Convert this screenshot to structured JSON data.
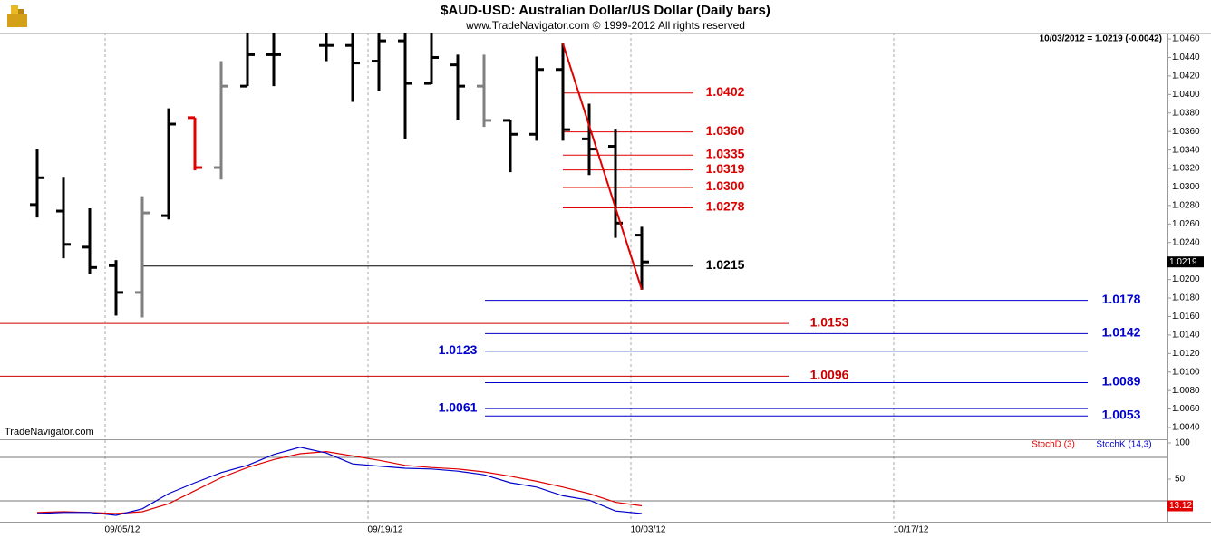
{
  "chart_data": {
    "type": "ohlc",
    "title": "$AUD-USD:  Australian Dollar/US Dollar  (Daily bars)",
    "subtitle": "www.TradeNavigator.com © 1999-2012 All rights reserved",
    "info": "10/03/2012 = 1.0219 (-0.0042)",
    "watermark": "TradeNavigator.com",
    "x": [
      "08/31/12",
      "09/03/12",
      "09/04/12",
      "09/05/12",
      "09/06/12",
      "09/07/12",
      "09/10/12",
      "09/11/12",
      "09/12/12",
      "09/13/12",
      "09/14/12",
      "09/17/12",
      "09/18/12",
      "09/19/12",
      "09/20/12",
      "09/21/12",
      "09/24/12",
      "09/25/12",
      "09/26/12",
      "09/27/12",
      "09/28/12",
      "10/01/12",
      "10/02/12",
      "10/03/12"
    ],
    "open": [
      1.0281,
      1.0274,
      1.0235,
      1.0215,
      1.0186,
      1.0269,
      1.0375,
      1.0321,
      1.0409,
      1.0443,
      null,
      1.0453,
      1.0453,
      1.0436,
      1.0458,
      1.0412,
      1.0432,
      1.0409,
      1.0372,
      1.0357,
      1.0427,
      1.0352,
      1.0344,
      1.0248
    ],
    "high": [
      1.0341,
      1.0311,
      1.0277,
      1.0221,
      1.029,
      1.0385,
      1.0375,
      1.0436,
      1.047,
      1.047,
      null,
      1.047,
      1.047,
      1.047,
      1.047,
      1.047,
      1.0443,
      1.0443,
      1.0372,
      1.0441,
      1.0455,
      1.039,
      1.0363,
      1.0257
    ],
    "low": [
      1.0267,
      1.0223,
      1.0206,
      1.0161,
      1.0159,
      1.0265,
      1.0318,
      1.0308,
      1.0409,
      1.0409,
      null,
      1.0436,
      1.0392,
      1.0404,
      1.0352,
      1.0411,
      1.0372,
      1.0365,
      1.0316,
      1.035,
      1.035,
      1.0313,
      1.0245,
      1.0189
    ],
    "close": [
      1.031,
      1.0238,
      1.0213,
      1.0186,
      1.0272,
      1.0368,
      1.0321,
      1.0409,
      1.0443,
      1.0443,
      null,
      1.0453,
      1.0434,
      1.0458,
      1.0412,
      1.044,
      1.0409,
      1.0372,
      1.0357,
      1.0427,
      1.0362,
      1.0341,
      1.0261,
      1.0219
    ],
    "bar_colors": [
      "#000000",
      "#000000",
      "#000000",
      "#000000",
      "#808080",
      "#000000",
      "#e00000",
      "#808080",
      "#000000",
      "#000000",
      "#000000",
      "#000000",
      "#000000",
      "#000000",
      "#000000",
      "#000000",
      "#000000",
      "#808080",
      "#000000",
      "#000000",
      "#000000",
      "#000000",
      "#000000",
      "#000000"
    ],
    "ylim": [
      1.00273,
      1.04669
    ],
    "yticks": [
      {
        "value": 1.046,
        "label": "1.0460"
      },
      {
        "value": 1.044,
        "label": "1.0440"
      },
      {
        "value": 1.042,
        "label": "1.0420"
      },
      {
        "value": 1.04,
        "label": "1.0400"
      },
      {
        "value": 1.038,
        "label": "1.0380"
      },
      {
        "value": 1.036,
        "label": "1.0360"
      },
      {
        "value": 1.034,
        "label": "1.0340"
      },
      {
        "value": 1.032,
        "label": "1.0320"
      },
      {
        "value": 1.03,
        "label": "1.0300"
      },
      {
        "value": 1.028,
        "label": "1.0280"
      },
      {
        "value": 1.026,
        "label": "1.0260"
      },
      {
        "value": 1.024,
        "label": "1.0240"
      },
      {
        "value": 1.022,
        "label": "1.0220"
      },
      {
        "value": 1.02,
        "label": "1.0200"
      },
      {
        "value": 1.018,
        "label": "1.0180"
      },
      {
        "value": 1.016,
        "label": "1.0160"
      },
      {
        "value": 1.014,
        "label": "1.0140"
      },
      {
        "value": 1.012,
        "label": "1.0120"
      },
      {
        "value": 1.01,
        "label": "1.0100"
      },
      {
        "value": 1.008,
        "label": "1.0080"
      },
      {
        "value": 1.006,
        "label": "1.0060"
      },
      {
        "value": 1.004,
        "label": "1.0040"
      }
    ],
    "xticks": [
      "09/05/12",
      "09/19/12",
      "10/03/12",
      "10/17/12"
    ],
    "last_price": 1.0219,
    "trend_line": {
      "color": "#e00000",
      "x": [
        "09/28/12",
        "10/03/12"
      ],
      "values": [
        1.0455,
        1.0189
      ]
    },
    "retracement_levels": {
      "color": "#e00000",
      "items": [
        {
          "value": 1.0402,
          "label": "1.0402"
        },
        {
          "value": 1.036,
          "label": "1.0360"
        },
        {
          "value": 1.0335,
          "label": "1.0335"
        },
        {
          "value": 1.0319,
          "label": "1.0319"
        },
        {
          "value": 1.03,
          "label": "1.0300"
        },
        {
          "value": 1.0278,
          "label": "1.0278"
        }
      ]
    },
    "reference_level": {
      "color": "#000000",
      "items": [
        {
          "value": 1.0215,
          "label": "1.0215"
        }
      ]
    },
    "projection_levels": {
      "color": "#0000cc",
      "items": [
        {
          "value": 1.0178,
          "label": "1.0178",
          "label_side": "right"
        },
        {
          "value": 1.0142,
          "label": "1.0142",
          "label_side": "right"
        },
        {
          "value": 1.0123,
          "label": "1.0123",
          "label_side": "left"
        },
        {
          "value": 1.0089,
          "label": "1.0089",
          "label_side": "right"
        },
        {
          "value": 1.0061,
          "label": "1.0061",
          "label_side": "left"
        },
        {
          "value": 1.0053,
          "label": "1.0053",
          "label_side": "right"
        }
      ]
    },
    "support_levels": {
      "color": "#cc0000",
      "items": [
        {
          "value": 1.0153,
          "label": "1.0153"
        },
        {
          "value": 1.0096,
          "label": "1.0096"
        }
      ]
    },
    "stochastic": {
      "ylim": [
        -8.75,
        102.5
      ],
      "yticks": [
        100,
        50
      ],
      "guides": [
        80,
        20
      ],
      "last_value": 13.12,
      "series": [
        {
          "name": "StochD (3)",
          "color": "#e00000",
          "values": [
            4,
            5,
            4,
            2.5,
            5,
            16,
            34,
            52,
            66,
            77,
            85,
            88,
            82,
            76,
            69,
            66,
            64,
            60,
            54,
            47,
            39,
            30,
            18,
            13.12
          ]
        },
        {
          "name": "StochK (14,3)",
          "color": "#0000cc",
          "values": [
            2.5,
            4,
            4,
            0,
            9,
            30,
            45,
            59,
            69,
            84,
            94,
            86,
            71,
            68,
            65,
            64,
            61,
            56,
            45,
            39,
            27,
            21,
            6,
            2.5
          ]
        }
      ]
    }
  }
}
